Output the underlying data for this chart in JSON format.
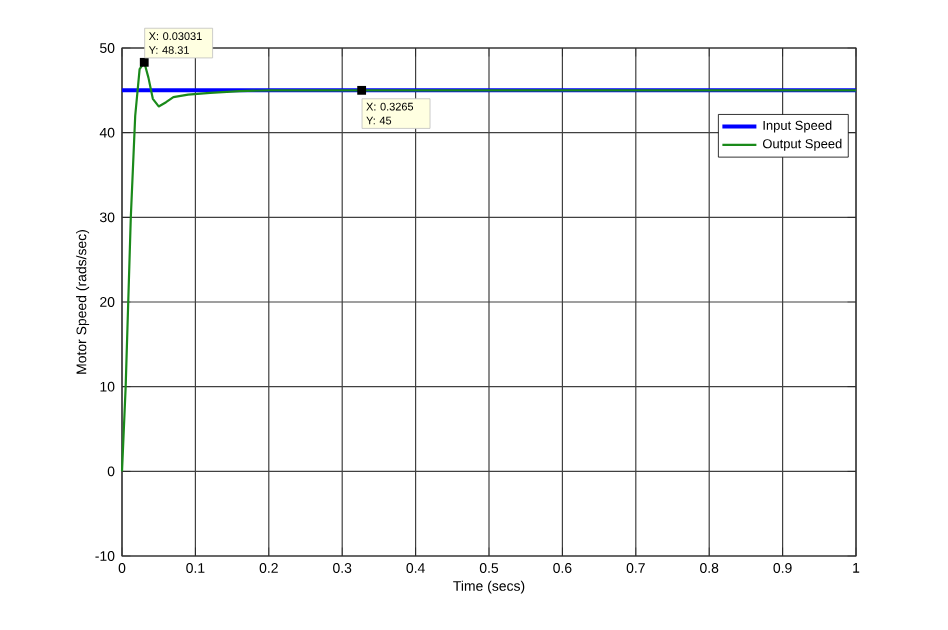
{
  "chart_data": {
    "type": "line",
    "xlabel": "Time (secs)",
    "ylabel": "Motor Speed (rads/sec)",
    "xlim": [
      0,
      1
    ],
    "ylim": [
      -10,
      50
    ],
    "xticks": [
      0,
      0.1,
      0.2,
      0.3,
      0.4,
      0.5,
      0.6,
      0.7,
      0.8,
      0.9,
      1
    ],
    "yticks": [
      -10,
      0,
      10,
      20,
      30,
      40,
      50
    ],
    "grid": true,
    "legend": "top right",
    "line_style": "solid",
    "marker": "none",
    "series": [
      {
        "name": "Input Speed",
        "color": "#0000ff",
        "x": [
          0,
          1
        ],
        "values": [
          45,
          45
        ]
      },
      {
        "name": "Output Speed",
        "color": "#1a8a1a",
        "x": [
          0,
          0.005,
          0.012,
          0.018,
          0.024,
          0.03031,
          0.036,
          0.042,
          0.05,
          0.06,
          0.07,
          0.09,
          0.12,
          0.16,
          0.2,
          0.3265,
          1
        ],
        "values": [
          0,
          10,
          30,
          42,
          47.5,
          48.31,
          46.5,
          44,
          43.1,
          43.6,
          44.2,
          44.5,
          44.7,
          44.9,
          45,
          45,
          45
        ]
      }
    ],
    "annotations": [
      {
        "text": "X: 0.03031 Y: 48.31",
        "x": 0.03031,
        "y": 48.31
      },
      {
        "text": "X: 0.3265 Y: 45",
        "x": 0.3265,
        "y": 45
      }
    ]
  }
}
